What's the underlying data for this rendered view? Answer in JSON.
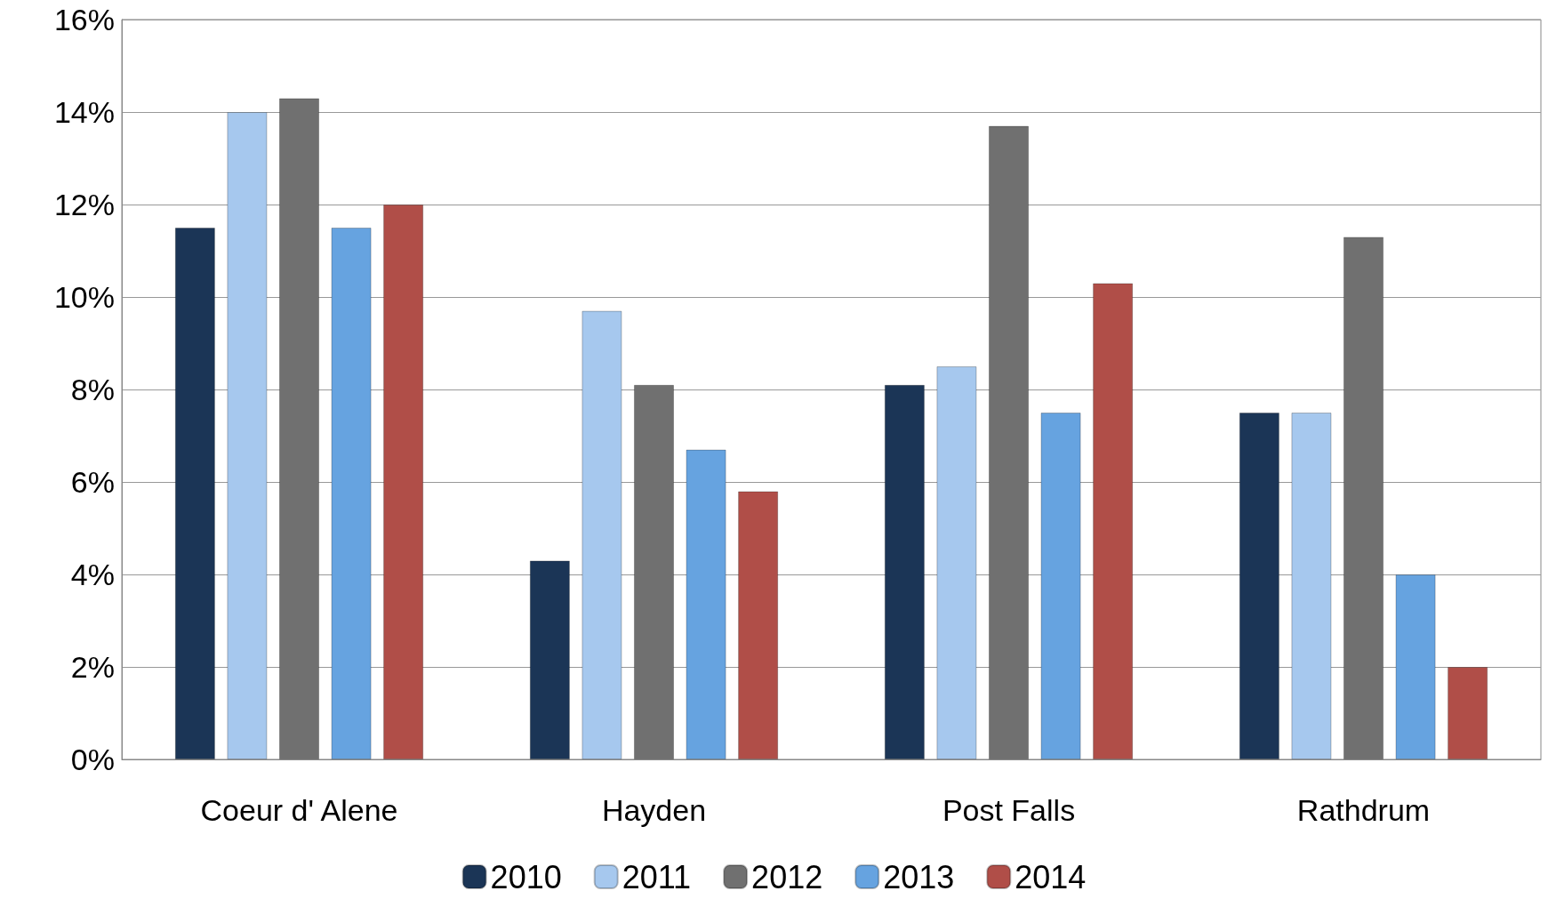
{
  "chart_data": {
    "type": "bar",
    "categories": [
      "Coeur d' Alene",
      "Hayden",
      "Post Falls",
      "Rathdrum"
    ],
    "series": [
      {
        "name": "2010",
        "color": "#1b3556",
        "values": [
          11.5,
          4.3,
          8.1,
          7.5
        ]
      },
      {
        "name": "2011",
        "color": "#a6c8ee",
        "values": [
          14.0,
          9.7,
          8.5,
          7.5
        ]
      },
      {
        "name": "2012",
        "color": "#707070",
        "values": [
          14.3,
          8.1,
          13.7,
          11.3
        ]
      },
      {
        "name": "2013",
        "color": "#66a3e0",
        "values": [
          11.5,
          6.7,
          7.5,
          4.0
        ]
      },
      {
        "name": "2014",
        "color": "#b04e48",
        "values": [
          12.0,
          5.8,
          10.3,
          2.0
        ]
      }
    ],
    "ylim": [
      0,
      16
    ],
    "yticks": [
      {
        "value": 0,
        "label": "0%"
      },
      {
        "value": 2,
        "label": "2%"
      },
      {
        "value": 4,
        "label": "4%"
      },
      {
        "value": 6,
        "label": "6%"
      },
      {
        "value": 8,
        "label": "8%"
      },
      {
        "value": 10,
        "label": "10%"
      },
      {
        "value": 12,
        "label": "12%"
      },
      {
        "value": 14,
        "label": "14%"
      },
      {
        "value": 16,
        "label": "16%"
      }
    ],
    "grid": "y",
    "legend": "bottom"
  }
}
